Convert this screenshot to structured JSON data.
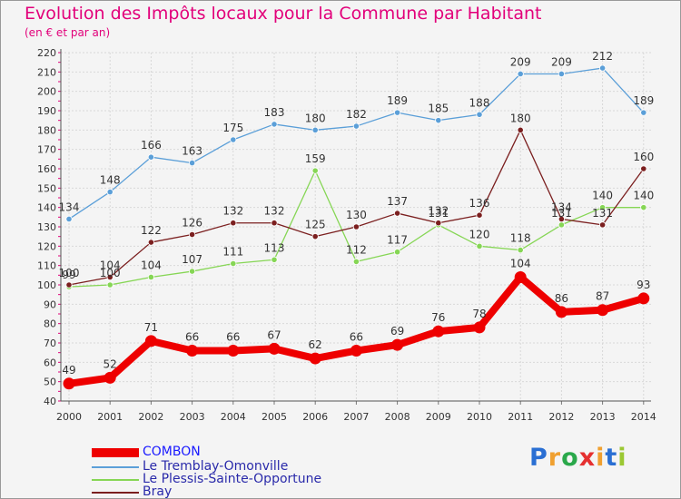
{
  "title": "Evolution des Impôts locaux pour la Commune par Habitant",
  "subtitle": "(en € et par an)",
  "brand": {
    "letters": [
      "P",
      "r",
      "o",
      "x",
      "i",
      "t",
      "i"
    ],
    "colors": [
      "#2a6fd3",
      "#f0a030",
      "#2aa84a",
      "#e53030",
      "#f0a030",
      "#2a6fd3",
      "#9bc832"
    ]
  },
  "chart_data": {
    "type": "line",
    "title": "Evolution des Impôts locaux pour la Commune par Habitant",
    "ylabel": "(en € et par an)",
    "xlabel": "",
    "ylim": [
      40,
      220
    ],
    "yticks": [
      40,
      50,
      60,
      70,
      80,
      90,
      100,
      110,
      120,
      130,
      140,
      150,
      160,
      170,
      180,
      190,
      200,
      210,
      220
    ],
    "grid": true,
    "legend": "bottom-left",
    "categories": [
      "2000",
      "2001",
      "2002",
      "2003",
      "2004",
      "2005",
      "2006",
      "2007",
      "2008",
      "2009",
      "2010",
      "2011",
      "2012",
      "2013",
      "2014"
    ],
    "series": [
      {
        "name": "COMBON",
        "color": "#ee0000",
        "values": [
          49,
          52,
          71,
          66,
          66,
          67,
          62,
          66,
          69,
          76,
          78,
          104,
          86,
          87,
          93
        ],
        "label_values": [
          "49",
          "52",
          "71",
          "66",
          "66",
          "67",
          "62",
          "66",
          "69",
          "76",
          "78",
          "104",
          "86",
          "87",
          "93"
        ]
      },
      {
        "name": "Le Tremblay-Omonville",
        "color": "#5b9fd8",
        "values": [
          134,
          148,
          166,
          163,
          175,
          183,
          180,
          182,
          189,
          185,
          188,
          209,
          209,
          212,
          189
        ],
        "label_values": [
          "134",
          "148",
          "166",
          "163",
          "175",
          "183",
          "180",
          "182",
          "189",
          "185",
          "188",
          "209",
          "209",
          "212",
          "189"
        ]
      },
      {
        "name": "Le Plessis-Sainte-Opportune",
        "color": "#86d655",
        "values": [
          99,
          100,
          104,
          107,
          111,
          113,
          159,
          112,
          117,
          131,
          120,
          118,
          131,
          140,
          140
        ],
        "label_values": [
          "99",
          "100",
          "104",
          "107",
          "111",
          "113",
          "159",
          "112",
          "117",
          "131",
          "120",
          "118",
          "131",
          "140",
          "140"
        ]
      },
      {
        "name": "Bray",
        "color": "#7b1f1f",
        "values": [
          100,
          104,
          122,
          126,
          132,
          132,
          125,
          130,
          137,
          132,
          136,
          180,
          134,
          131,
          160
        ],
        "label_values": [
          "100",
          "104",
          "122",
          "126",
          "132",
          "132",
          "125",
          "130",
          "137",
          "132",
          "136",
          "180",
          "134",
          "131",
          "160"
        ]
      }
    ]
  }
}
